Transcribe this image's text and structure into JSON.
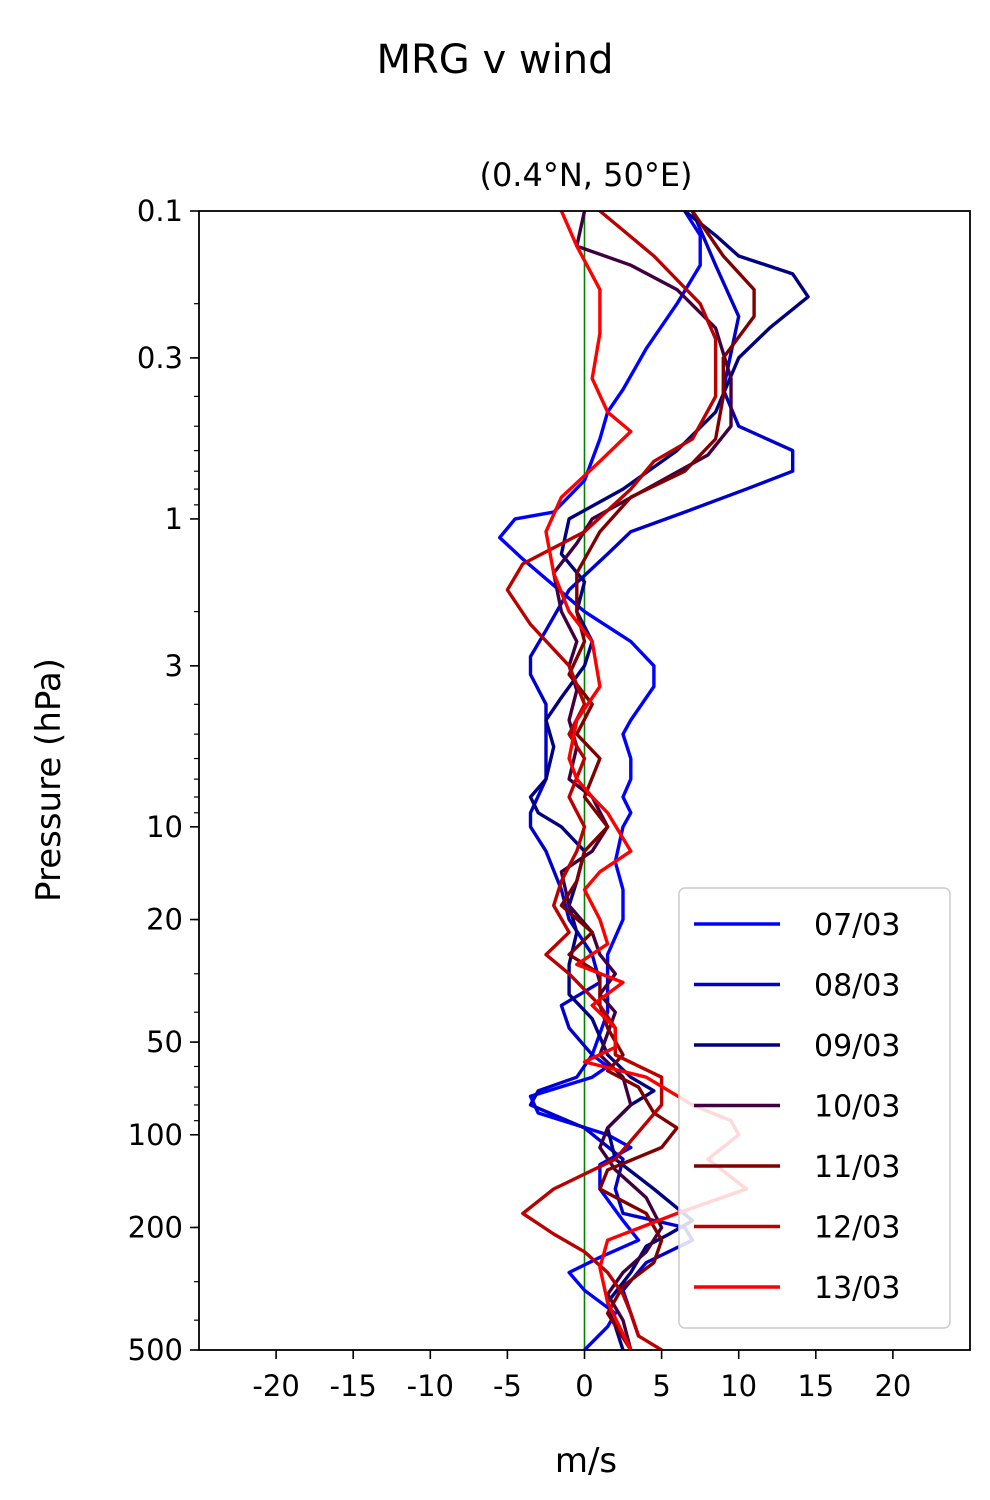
{
  "chart_data": {
    "type": "line",
    "suptitle": "MRG v wind",
    "title": "(0.4°N, 50°E)",
    "xlabel": "m/s",
    "ylabel": "Pressure (hPa)",
    "xlim": [
      -25,
      25
    ],
    "ylim": [
      500,
      0.1
    ],
    "yscale": "log",
    "xticks": [
      -20,
      -15,
      -10,
      -5,
      0,
      5,
      10,
      15,
      20
    ],
    "xtick_labels": [
      "-20",
      "-15",
      "-10",
      "-5",
      "0",
      "5",
      "10",
      "15",
      "20"
    ],
    "yticks": [
      0.1,
      0.3,
      1,
      3,
      10,
      20,
      50,
      100,
      200,
      500
    ],
    "ytick_labels": [
      "0.1",
      "0.3",
      "1",
      "3",
      "10",
      "20",
      "50",
      "100",
      "200",
      "500"
    ],
    "zero_line_color": "#008000",
    "legend_position": "lower-right",
    "series": [
      {
        "name": "07/03",
        "color": "#0000ff",
        "x": [
          6.5,
          7.5,
          7.5,
          6,
          4,
          2.5,
          1.5,
          1,
          0,
          -2,
          -4.5,
          -5.5,
          -4,
          0,
          3,
          4.5,
          4.5,
          3,
          2.5,
          3,
          3,
          2.5,
          3,
          2.5,
          2,
          2.5,
          2.5,
          1.5,
          1.5,
          1.5,
          0.5,
          1.5,
          0.5,
          -3.5,
          -3,
          1.5,
          3,
          1,
          1,
          2.5,
          3.5,
          1,
          -1,
          0,
          2,
          1.5,
          0
        ],
        "y": [
          0.1,
          0.12,
          0.15,
          0.2,
          0.28,
          0.38,
          0.45,
          0.55,
          0.75,
          0.95,
          1,
          1.15,
          1.35,
          2,
          2.5,
          3,
          3.5,
          4.5,
          5,
          6,
          7,
          8,
          9,
          10,
          13,
          16,
          20,
          26,
          32,
          40,
          55,
          60,
          65,
          75,
          85,
          100,
          110,
          125,
          150,
          190,
          220,
          250,
          280,
          320,
          380,
          420,
          500
        ]
      },
      {
        "name": "08/03",
        "color": "#0000cc",
        "x": [
          7,
          8.5,
          10,
          9,
          10,
          13.5,
          13.5,
          10.5,
          6.5,
          3,
          1.5,
          -1,
          -2.5,
          -3.5,
          -3.5,
          -2.5,
          -2.5,
          -2.5,
          -3.5,
          -3.5,
          -2.5,
          -1.5,
          -1,
          0.5,
          1,
          -1.5,
          -1,
          0.5,
          -0.5,
          -3,
          -3.5,
          0,
          2.5,
          2,
          2.5,
          6.5,
          7,
          4,
          2.5,
          3.5
        ],
        "y": [
          0.1,
          0.15,
          0.22,
          0.38,
          0.5,
          0.6,
          0.7,
          0.8,
          0.95,
          1.1,
          1.3,
          1.7,
          2.3,
          2.8,
          3.2,
          4,
          5,
          7,
          9,
          10,
          12,
          16,
          20,
          26,
          32,
          38,
          45,
          55,
          65,
          72,
          80,
          95,
          120,
          150,
          180,
          200,
          220,
          260,
          320,
          450
        ]
      },
      {
        "name": "09/03",
        "color": "#000080",
        "x": [
          6.5,
          8.5,
          10,
          13.5,
          14.5,
          12,
          10,
          8.5,
          6,
          2.5,
          -1,
          -1.5,
          0,
          -0.5,
          0.5,
          0,
          -1.5,
          -2.5,
          -2,
          -2.5,
          -3.5,
          -3,
          -1.5,
          0,
          -0.5,
          -1,
          -0.5,
          -1,
          -1,
          0.5,
          1.5,
          3,
          4.5,
          3,
          1.5,
          2,
          4.5,
          7,
          5.5,
          4,
          3,
          1.5,
          2.5
        ],
        "y": [
          0.1,
          0.12,
          0.14,
          0.16,
          0.19,
          0.24,
          0.3,
          0.45,
          0.6,
          0.8,
          1,
          1.3,
          1.6,
          2,
          2.5,
          3,
          3.8,
          4.5,
          5.5,
          7,
          8,
          9,
          10,
          12,
          15,
          18,
          22,
          28,
          35,
          42,
          55,
          65,
          72,
          80,
          95,
          120,
          150,
          190,
          210,
          230,
          280,
          350,
          500
        ]
      },
      {
        "name": "10/03",
        "color": "#400040",
        "x": [
          0,
          -0.5,
          3,
          6,
          8.5,
          9.5,
          9.5,
          8,
          4,
          0.5,
          -0.5,
          -2,
          -1.5,
          -0.5,
          -1,
          -0.5,
          -1,
          -0.5,
          -1,
          0.5,
          1.5,
          0.5,
          -1.5,
          -1,
          0.5,
          1,
          2,
          1,
          2,
          1,
          2.5,
          3,
          1.5,
          1,
          2,
          4,
          5,
          4,
          2.5,
          1.5,
          2.5,
          3
        ],
        "y": [
          0.1,
          0.13,
          0.15,
          0.18,
          0.24,
          0.35,
          0.5,
          0.62,
          0.8,
          1,
          1.2,
          1.5,
          2,
          2.5,
          3,
          3.6,
          4.5,
          5.5,
          7,
          8,
          10,
          12,
          14,
          18,
          22,
          26,
          30,
          35,
          40,
          55,
          65,
          80,
          95,
          110,
          130,
          160,
          200,
          240,
          280,
          330,
          400,
          500
        ]
      },
      {
        "name": "11/03",
        "color": "#800000",
        "x": [
          7,
          9,
          11,
          11,
          9,
          9,
          8.5,
          6.5,
          3,
          1,
          -0.5,
          -0.5,
          0,
          -1,
          0.5,
          -0.5,
          1,
          0,
          1.5,
          0,
          -0.5,
          -1.5,
          0.5,
          -1,
          1,
          1,
          1.5,
          2.5,
          1.5,
          3.5,
          4.5,
          6,
          5,
          1.5,
          1,
          4,
          5,
          4.5,
          2.5,
          1.5,
          3
        ],
        "y": [
          0.1,
          0.14,
          0.18,
          0.22,
          0.3,
          0.4,
          0.55,
          0.7,
          0.85,
          1.1,
          1.5,
          2,
          2.5,
          3.2,
          4,
          5,
          6,
          8,
          10,
          12,
          15,
          18,
          22,
          26,
          30,
          38,
          45,
          55,
          62,
          70,
          85,
          95,
          110,
          130,
          150,
          180,
          220,
          260,
          310,
          380,
          500
        ]
      },
      {
        "name": "12/03",
        "color": "#bb0000",
        "x": [
          1,
          4.5,
          7.5,
          8.5,
          8.5,
          7,
          4.5,
          3,
          0,
          -4,
          -5,
          -3.5,
          -1,
          0,
          -1,
          0,
          -1,
          0,
          -0.5,
          -1.5,
          -2,
          -1,
          -2.5,
          -1,
          1,
          2,
          2,
          5,
          5,
          2,
          -2,
          -4,
          -2,
          0,
          1.5,
          2.5,
          3,
          3.5,
          5
        ],
        "y": [
          0.1,
          0.14,
          0.2,
          0.26,
          0.4,
          0.55,
          0.65,
          0.8,
          1.1,
          1.4,
          1.7,
          2.2,
          3,
          4,
          5,
          6,
          8,
          10,
          12,
          15,
          18,
          22,
          26,
          30,
          38,
          45,
          55,
          65,
          80,
          120,
          150,
          180,
          210,
          240,
          280,
          330,
          380,
          450,
          500
        ]
      },
      {
        "name": "13/03",
        "color": "#ff0000",
        "x": [
          -1.5,
          -0.5,
          1,
          1,
          0.5,
          1.5,
          3,
          1,
          -1.5,
          -2.5,
          -2,
          -1,
          0.5,
          1,
          -0.5,
          -1,
          -0.5,
          0.5,
          1.5,
          3,
          1,
          0,
          1,
          1.5,
          -0.5,
          2.5,
          0.5,
          2,
          2,
          0,
          4,
          7,
          9.5,
          10,
          8,
          10.5,
          6,
          1.5,
          1,
          1.5,
          3
        ],
        "y": [
          0.1,
          0.13,
          0.18,
          0.25,
          0.35,
          0.45,
          0.52,
          0.65,
          0.85,
          1.1,
          1.5,
          2,
          2.5,
          3.5,
          4.5,
          6,
          7,
          8,
          9,
          12,
          14,
          16,
          20,
          24,
          28,
          32,
          38,
          45,
          52,
          58,
          65,
          80,
          90,
          100,
          120,
          150,
          180,
          220,
          270,
          350,
          500
        ]
      }
    ]
  }
}
